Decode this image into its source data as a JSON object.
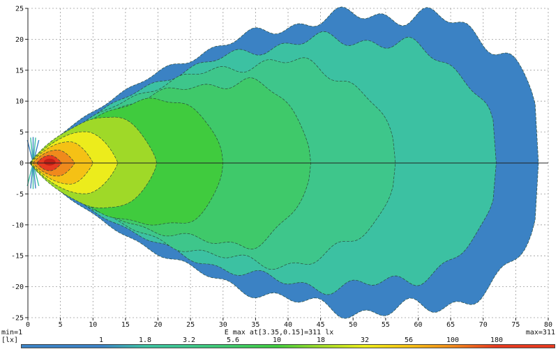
{
  "footer": {
    "min_label": "min=1",
    "unit_label": "[lx]",
    "emax_label": "E max at[3.35,0.15]=311 lx",
    "max_label": "max=311"
  },
  "legend": {
    "values": [
      "1",
      "1.8",
      "3.2",
      "5.6",
      "10",
      "18",
      "32",
      "56",
      "100",
      "180"
    ],
    "colors": [
      "#3b82c4",
      "#3cc1a2",
      "#3ec68b",
      "#3fc96a",
      "#40cb3e",
      "#9fd928",
      "#ecec1c",
      "#f5c115",
      "#f08a1c",
      "#e63a20"
    ],
    "position": "bottom"
  },
  "chart_data": {
    "type": "contour",
    "title": "",
    "xlabel": "",
    "ylabel": "",
    "unit": "lx",
    "x_range": [
      0,
      80
    ],
    "y_range": [
      -25,
      25
    ],
    "x_ticks": [
      0,
      5,
      10,
      15,
      20,
      25,
      30,
      35,
      40,
      45,
      50,
      55,
      60,
      65,
      70,
      75,
      80
    ],
    "y_ticks": [
      -25,
      -20,
      -15,
      -10,
      -5,
      0,
      5,
      10,
      15,
      20,
      25
    ],
    "grid": "dashed",
    "min_value": 1,
    "max_value": 311,
    "e_max": {
      "value": 311,
      "at": [
        3.35,
        0.15
      ]
    },
    "hotspot": {
      "x": 3.35,
      "y": 0.15,
      "rx": 0.9,
      "ry": 0.55,
      "color": "#c21f16"
    },
    "contour_line": {
      "color": "#2a4a3a",
      "dash": "4 2",
      "width": 0.7
    },
    "grid_style": {
      "color": "#9a9a9a",
      "dash": "2 3"
    },
    "axis_color": "#222222",
    "levels": [
      {
        "value": 1,
        "color": "#3b82c4",
        "reach": 78.5,
        "peak": 56,
        "halfwidth": 24.0,
        "blunt": 0.28,
        "tip": 0.3
      },
      {
        "value": 1.8,
        "color": "#3cc1a2",
        "reach": 72.0,
        "peak": 50,
        "halfwidth": 20.0,
        "blunt": 0.33,
        "tip": 0.3
      },
      {
        "value": 3.2,
        "color": "#3ec68b",
        "reach": 56.5,
        "peak": 40,
        "halfwidth": 16.2,
        "blunt": 0.45,
        "tip": 0.3
      },
      {
        "value": 5.6,
        "color": "#3fc96a",
        "reach": 43.5,
        "peak": 33,
        "halfwidth": 13.0,
        "blunt": 0.5,
        "tip": 0.3
      },
      {
        "value": 10,
        "color": "#40cb3e",
        "reach": 30.0,
        "peak": 22,
        "halfwidth": 10.2,
        "blunt": 0.55,
        "tip": 0.3
      },
      {
        "value": 18,
        "color": "#9fd928",
        "reach": 19.8,
        "peak": 13,
        "halfwidth": 7.4,
        "blunt": 0.7,
        "tip": 0.35
      },
      {
        "value": 32,
        "color": "#ecec1c",
        "reach": 13.8,
        "peak": 9,
        "halfwidth": 5.0,
        "blunt": 0.8,
        "tip": 0.45
      },
      {
        "value": 56,
        "color": "#f5c115",
        "reach": 10.0,
        "peak": 6.5,
        "halfwidth": 3.4,
        "blunt": 0.85,
        "tip": 0.55
      },
      {
        "value": 100,
        "color": "#f08a1c",
        "reach": 7.2,
        "peak": 4.6,
        "halfwidth": 2.1,
        "blunt": 0.9,
        "tip": 0.8
      },
      {
        "value": 180,
        "color": "#e63a20",
        "reach": 5.2,
        "peak": 3.4,
        "halfwidth": 1.25,
        "blunt": 0.95,
        "tip": 1.4
      }
    ],
    "spikes": {
      "origin": [
        0.8,
        0
      ],
      "length": 4.2,
      "angles_deg": [
        62,
        78,
        90,
        102,
        118,
        -62,
        -78,
        -90,
        -102,
        -118
      ]
    }
  }
}
